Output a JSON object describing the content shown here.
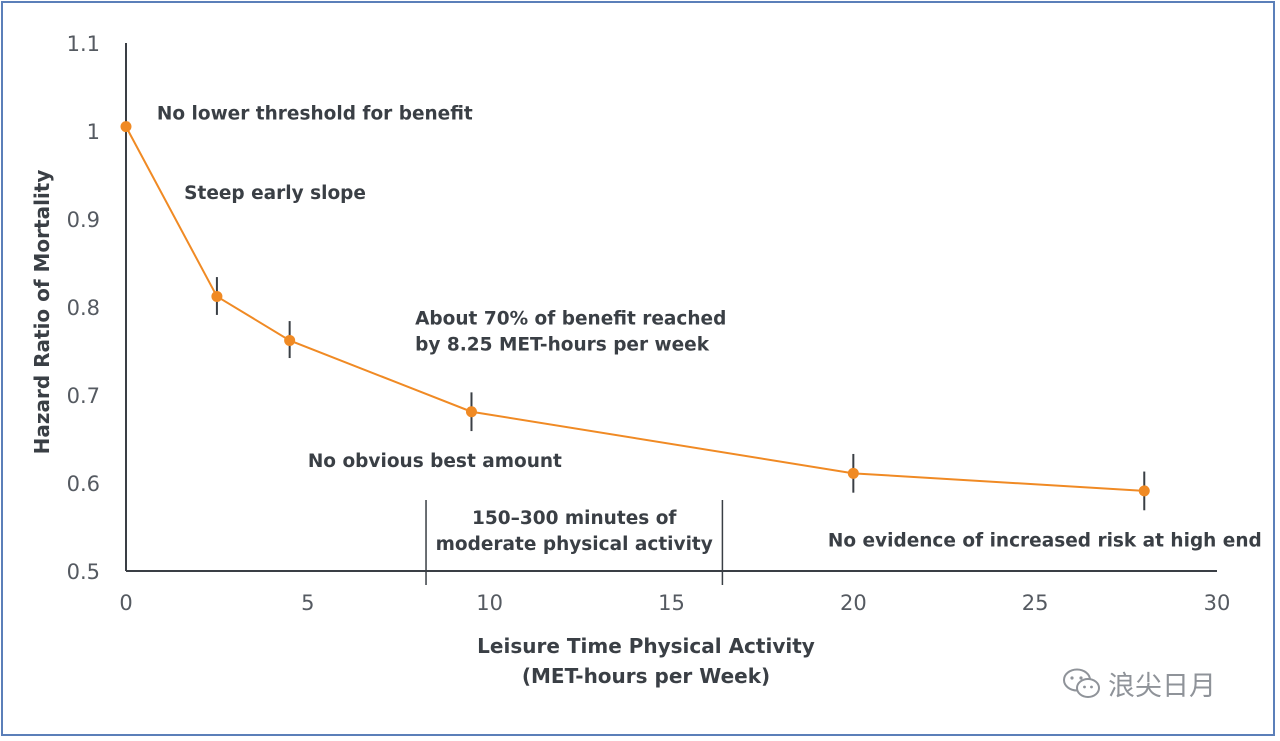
{
  "chart_data": {
    "type": "line",
    "title": "",
    "xlabel": [
      "Leisure Time Physical Activity",
      "(MET-hours per Week)"
    ],
    "ylabel": "Hazard Ratio of Mortality",
    "xlim": [
      0,
      30
    ],
    "ylim": [
      0.5,
      1.1
    ],
    "xticks": [
      0,
      5,
      10,
      15,
      20,
      25,
      30
    ],
    "yticks": [
      "0.5",
      "0.6",
      "0.7",
      "0.8",
      "0.9",
      "1",
      "1.1"
    ],
    "grid": false,
    "series": [
      {
        "name": "",
        "color": "#f08a24",
        "x": [
          0,
          2.5,
          4.5,
          9.5,
          20,
          28
        ],
        "y": [
          1.005,
          0.812,
          0.762,
          0.681,
          0.611,
          0.591
        ],
        "ci_low": [
          null,
          0.791,
          0.742,
          0.659,
          0.589,
          0.569
        ],
        "ci_high": [
          null,
          0.834,
          0.784,
          0.703,
          0.633,
          0.613
        ]
      }
    ],
    "band": {
      "x": [
        8.25,
        16.4
      ],
      "label": [
        "150–300 minutes of",
        "moderate physical activity"
      ]
    },
    "annotations": [
      {
        "id": "ann-no-lower-threshold",
        "lines": [
          "No lower threshold for benefit"
        ],
        "x": 0.85,
        "y": 1.013
      },
      {
        "id": "ann-steep-early-slope",
        "lines": [
          "Steep early slope"
        ],
        "x": 1.6,
        "y": 0.923
      },
      {
        "id": "ann-70-percent",
        "lines": [
          "About 70% of benefit reached",
          "by 8.25 MET-hours per week"
        ],
        "x": 7.95,
        "y": 0.78
      },
      {
        "id": "ann-no-best-amount",
        "lines": [
          "No obvious best amount"
        ],
        "x": 5.0,
        "y": 0.618
      },
      {
        "id": "ann-no-increased-risk",
        "lines": [
          "No evidence of increased risk at high end"
        ],
        "x": 19.3,
        "y": 0.528
      }
    ]
  },
  "watermark": {
    "text": "浪尖日月",
    "icon": "wechat-icon"
  },
  "colors": {
    "line": "#f08a24",
    "axis": "#3a3f45",
    "error_bar": "#3a3f45",
    "frame": "#5b7fb9"
  }
}
